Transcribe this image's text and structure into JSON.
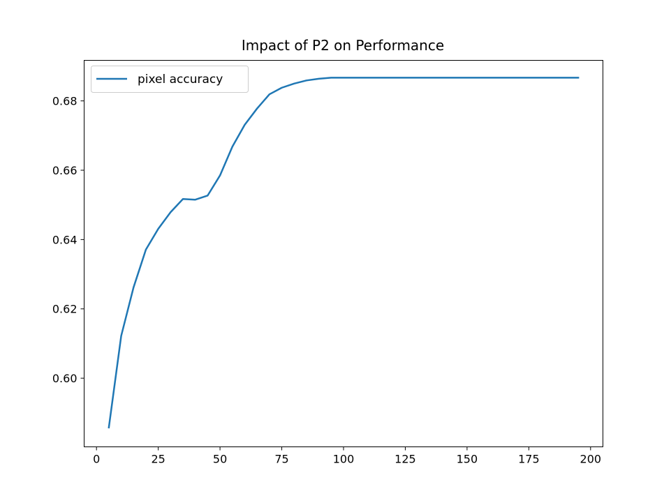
{
  "chart_data": {
    "type": "line",
    "title": "Impact of P2 on Performance",
    "xlabel": "",
    "ylabel": "",
    "xlim": [
      -5,
      205
    ],
    "ylim": [
      0.5802,
      0.6917
    ],
    "x_ticks": [
      0,
      25,
      50,
      75,
      100,
      125,
      150,
      175,
      200
    ],
    "y_ticks": [
      0.6,
      0.62,
      0.64,
      0.66,
      0.68
    ],
    "x_tick_labels": [
      "0",
      "25",
      "50",
      "75",
      "100",
      "125",
      "150",
      "175",
      "200"
    ],
    "y_tick_labels": [
      "0.60",
      "0.62",
      "0.64",
      "0.66",
      "0.68"
    ],
    "grid": false,
    "legend": {
      "position": "top-left",
      "entries": [
        "pixel accuracy"
      ]
    },
    "series": [
      {
        "name": "pixel accuracy",
        "color": "#1f77b4",
        "x": [
          5,
          10,
          15,
          20,
          25,
          30,
          35,
          40,
          45,
          50,
          55,
          60,
          65,
          70,
          75,
          80,
          85,
          90,
          95,
          100,
          105,
          110,
          115,
          120,
          125,
          130,
          135,
          140,
          145,
          150,
          155,
          160,
          165,
          170,
          175,
          180,
          185,
          190,
          195
        ],
        "y": [
          0.5858,
          0.6122,
          0.6262,
          0.6371,
          0.6431,
          0.6479,
          0.6517,
          0.6515,
          0.6527,
          0.6585,
          0.6668,
          0.6731,
          0.6778,
          0.6819,
          0.6838,
          0.685,
          0.6859,
          0.6864,
          0.6867,
          0.6867,
          0.6867,
          0.6867,
          0.6867,
          0.6867,
          0.6867,
          0.6867,
          0.6867,
          0.6867,
          0.6867,
          0.6867,
          0.6867,
          0.6867,
          0.6867,
          0.6867,
          0.6867,
          0.6867,
          0.6867,
          0.6867,
          0.6867
        ]
      }
    ]
  }
}
